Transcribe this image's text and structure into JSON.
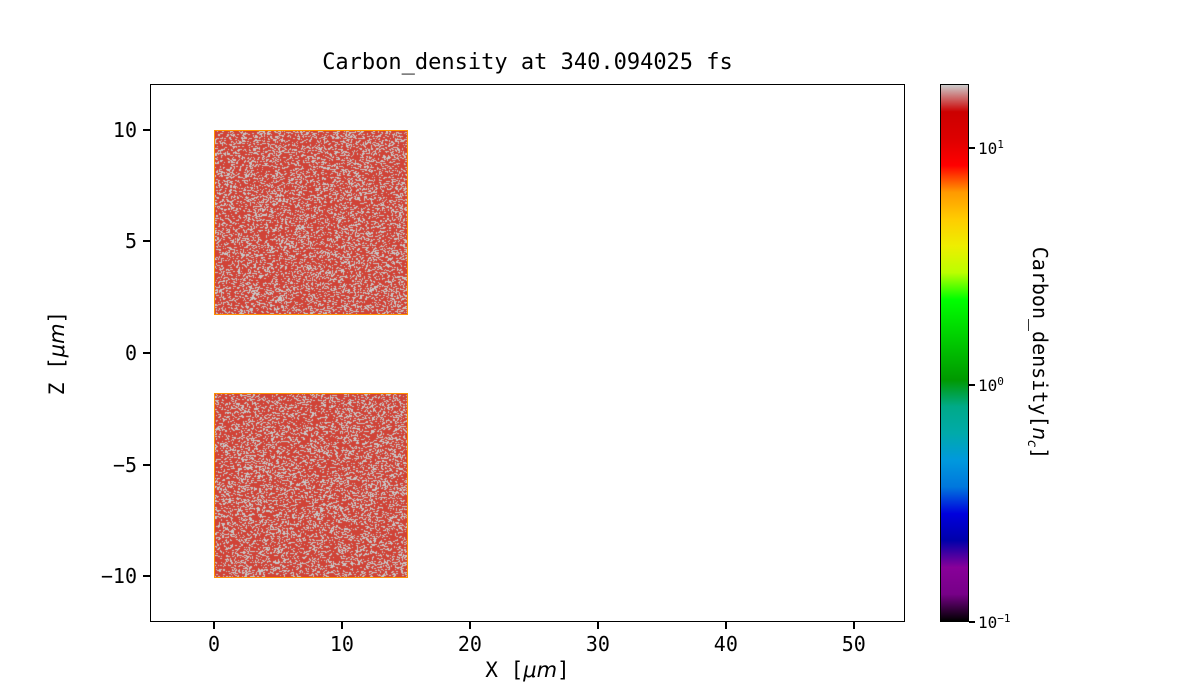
{
  "chart_data": {
    "type": "heatmap",
    "title": "Carbon_density at 340.094025 fs",
    "quantity": "Carbon_density",
    "time_fs": 340.094025,
    "xlabel": "X [μm]",
    "ylabel": "Z [μm]",
    "xlabel_parts": {
      "prefix": "X [",
      "unit": "μm",
      "suffix": "]"
    },
    "ylabel_parts": {
      "prefix": "Z [",
      "unit": "μm",
      "suffix": "]"
    },
    "xlim": [
      -5,
      54
    ],
    "ylim": [
      -12.05,
      12.05
    ],
    "x_ticks": [
      0,
      10,
      20,
      30,
      40,
      50
    ],
    "x_tick_labels": [
      "0",
      "10",
      "20",
      "30",
      "40",
      "50"
    ],
    "y_ticks": [
      -10,
      -5,
      0,
      5,
      10
    ],
    "y_tick_labels": [
      "−10",
      "−5",
      "0",
      "5",
      "10"
    ],
    "grid": false,
    "background": "#ffffff",
    "regions": [
      {
        "x_range_um": [
          0,
          15
        ],
        "z_range_um": [
          1.8,
          10
        ],
        "approx_density_nc": 8,
        "speckle_density_nc": 18
      },
      {
        "x_range_um": [
          0,
          15
        ],
        "z_range_um": [
          -10,
          -1.8
        ],
        "approx_density_nc": 8,
        "speckle_density_nc": 18
      }
    ],
    "region_style": {
      "fill": "#d04337",
      "speckle": "#c8c8c8",
      "edge": "#ff9100"
    },
    "colorbar": {
      "label": "Carbon_density[n_c]",
      "label_parts": {
        "prefix": "Carbon_density[",
        "symbol": "n",
        "subscript": "c",
        "suffix": "]"
      },
      "scale": "log",
      "vmin": 0.1,
      "vmax": 18.6,
      "colormap": "nipy_spectral",
      "ticks": [
        {
          "value": 10,
          "base": "10",
          "exp": "1"
        },
        {
          "value": 1,
          "base": "10",
          "exp": "0"
        },
        {
          "value": 0.1,
          "base": "10",
          "exp": "−1"
        }
      ],
      "colors_bottom_to_top": [
        "#000000",
        "#770088",
        "#880099",
        "#0000aa",
        "#0000dd",
        "#0077dd",
        "#0099dd",
        "#00aaaa",
        "#00aa88",
        "#009900",
        "#00bb00",
        "#00dd00",
        "#00ff00",
        "#bbff00",
        "#eeee00",
        "#ffcc00",
        "#ff9900",
        "#ff0000",
        "#dd0000",
        "#cc0000",
        "#cccccc"
      ]
    }
  }
}
